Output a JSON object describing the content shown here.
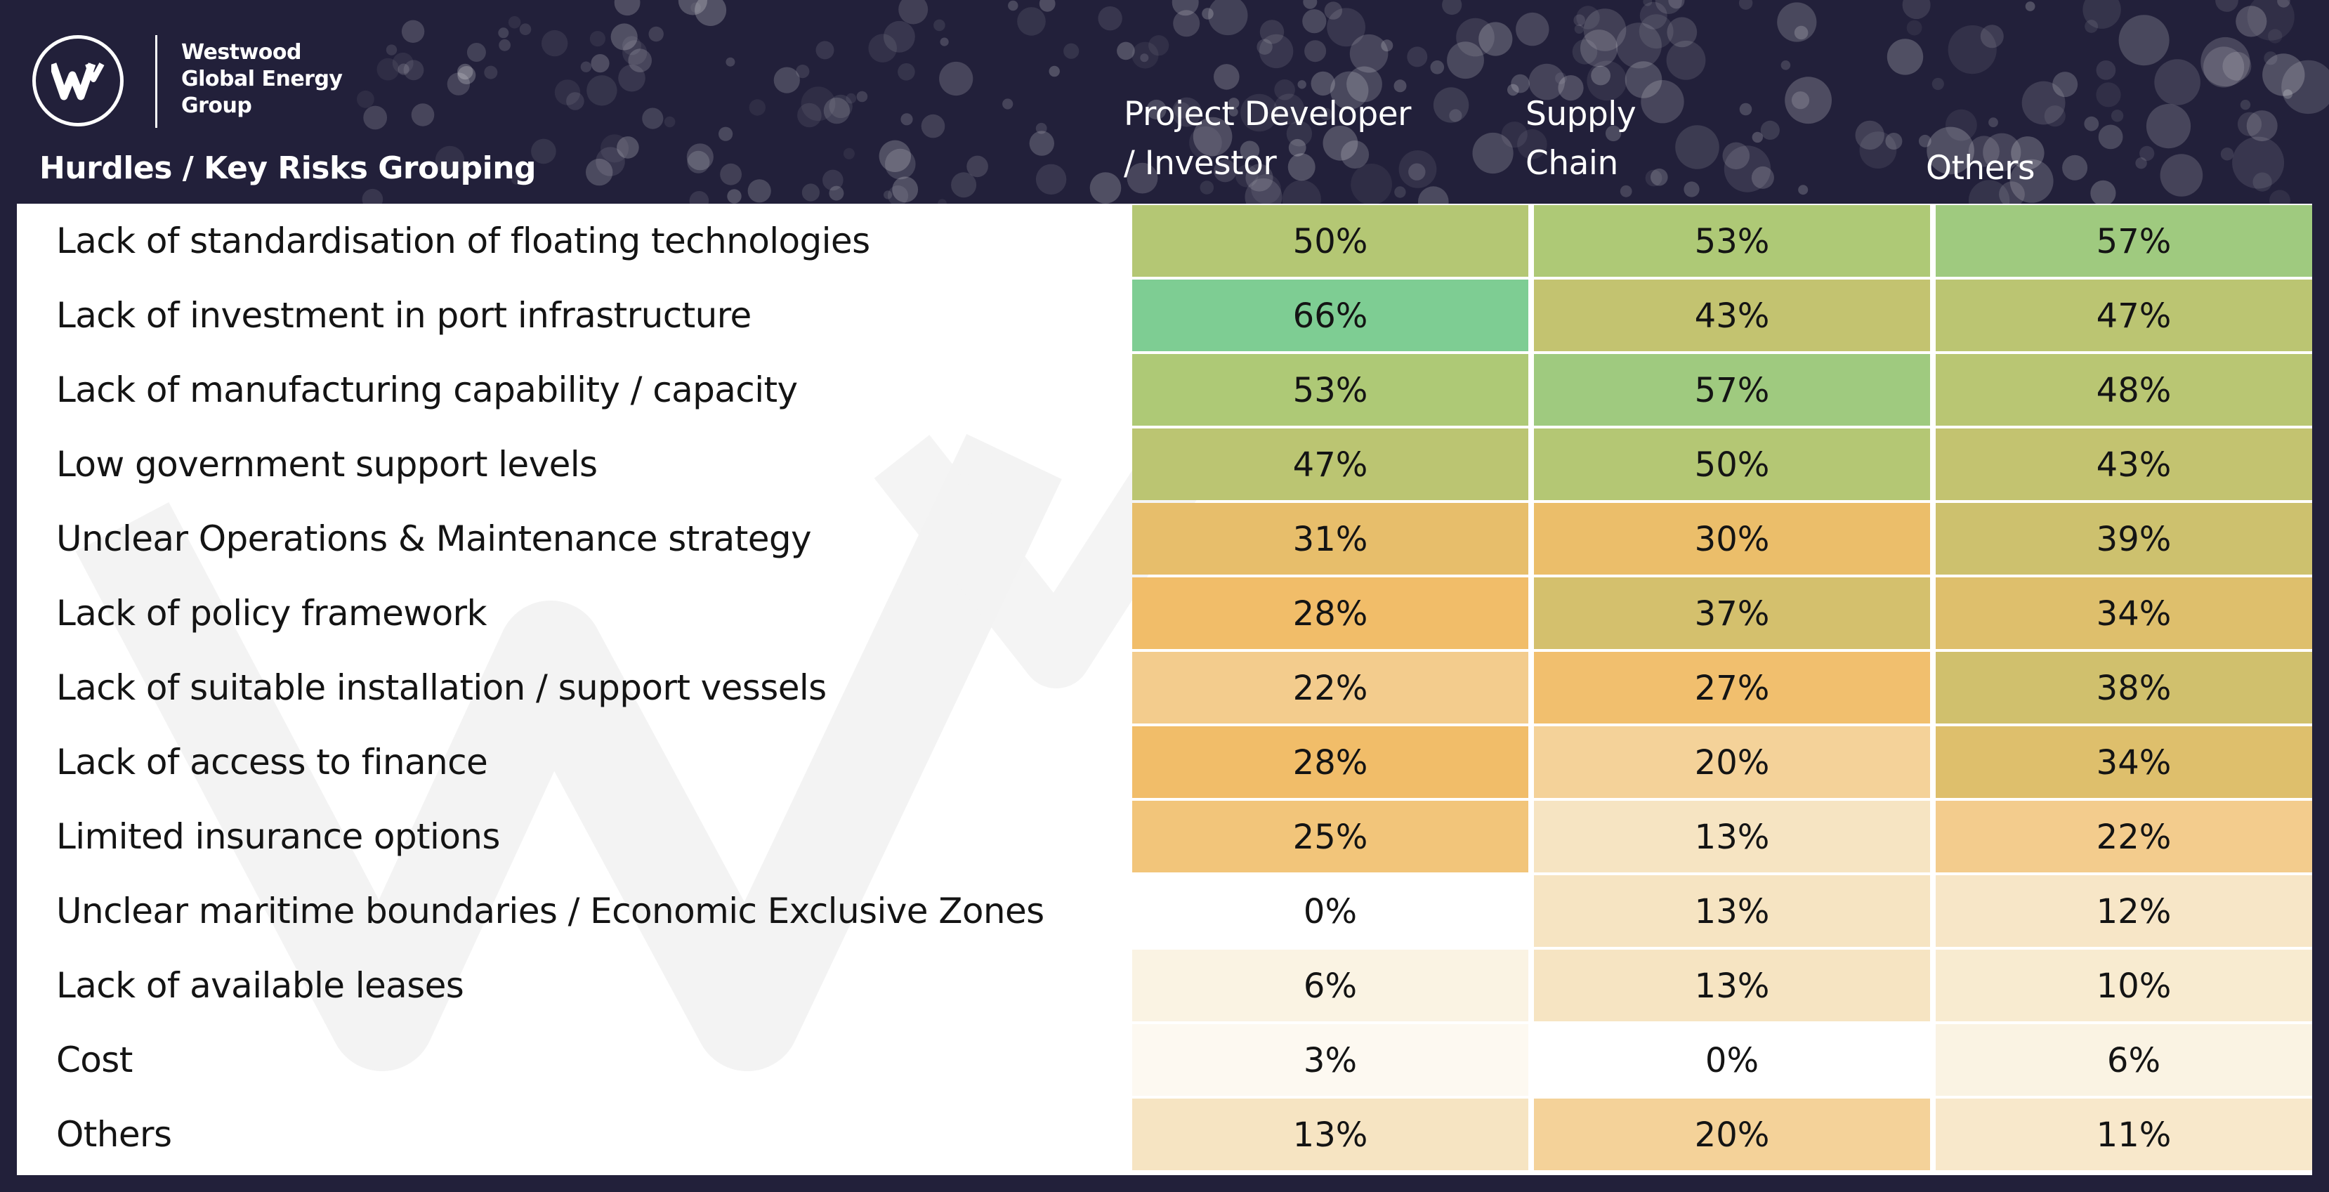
{
  "logo": {
    "lines": [
      "Westwood",
      "Global Energy",
      "Group"
    ]
  },
  "chart_data": {
    "type": "heatmap",
    "row_header": "Hurdles / Key Risks Grouping",
    "columns": [
      {
        "name": "Project Developer / Investor",
        "lines": [
          "Project Developer",
          "/ Investor"
        ]
      },
      {
        "name": "Supply Chain",
        "lines": [
          "Supply",
          "Chain"
        ]
      },
      {
        "name": "Others",
        "lines": [
          "Others"
        ]
      }
    ],
    "rows": [
      "Lack of standardisation of floating technologies",
      "Lack of investment in port infrastructure",
      "Lack of manufacturing capability / capacity",
      "Low government support levels",
      "Unclear Operations & Maintenance strategy",
      "Lack of policy framework",
      "Lack of suitable installation / support vessels",
      "Lack of access to finance",
      "Limited insurance options",
      "Unclear maritime boundaries / Economic Exclusive Zones",
      "Lack of available leases",
      "Cost",
      "Others"
    ],
    "values": [
      [
        50,
        53,
        57
      ],
      [
        66,
        43,
        47
      ],
      [
        53,
        57,
        48
      ],
      [
        47,
        50,
        43
      ],
      [
        31,
        30,
        39
      ],
      [
        28,
        37,
        34
      ],
      [
        22,
        27,
        38
      ],
      [
        28,
        20,
        34
      ],
      [
        25,
        13,
        22
      ],
      [
        0,
        13,
        12
      ],
      [
        6,
        13,
        10
      ],
      [
        3,
        0,
        6
      ],
      [
        13,
        20,
        11
      ]
    ],
    "value_format": "percent",
    "color_scale": [
      "#ffffff",
      "#f5e2bd",
      "#f0b75c",
      "#c5bc62",
      "#a7c46a",
      "#73c98a"
    ]
  },
  "colors": {
    "background": "#22203a",
    "panel": "#ffffff",
    "header_text": "#ffffff",
    "cell_text": "#141414"
  }
}
